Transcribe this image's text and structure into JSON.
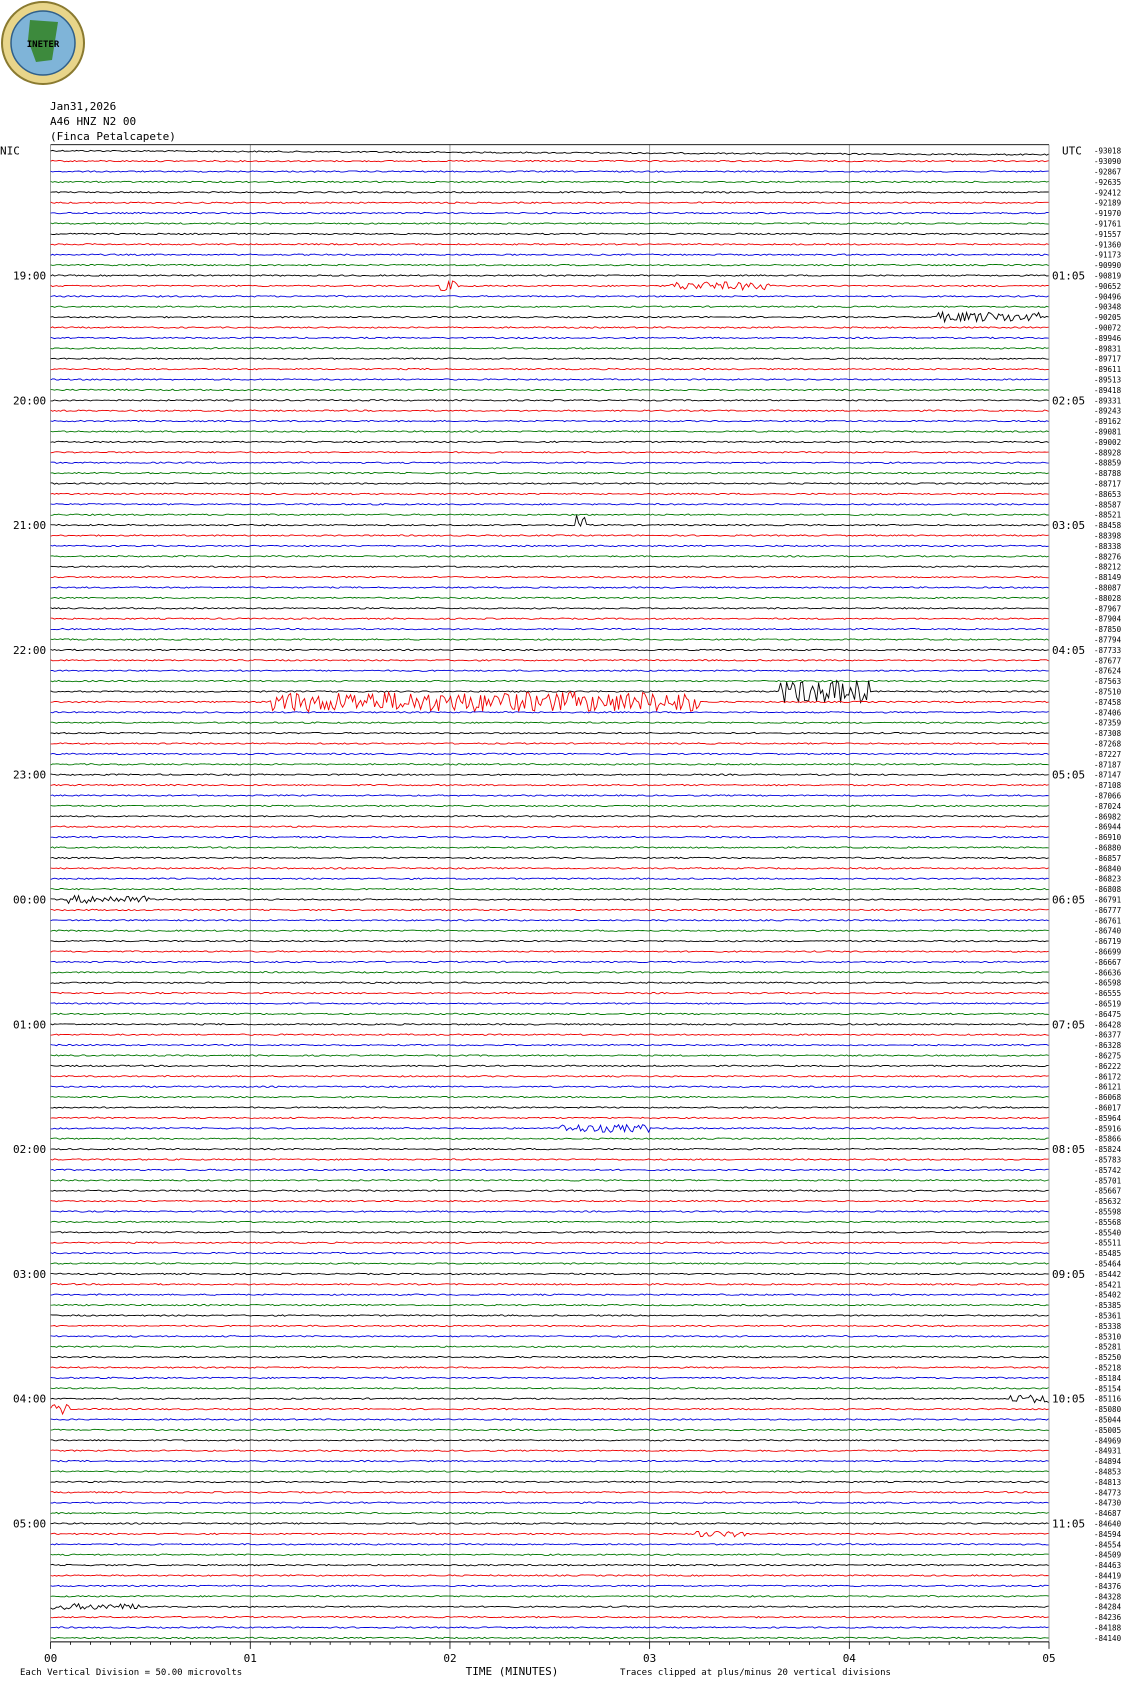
{
  "header": {
    "logo_text": "INETER",
    "date": "Jan31,2026",
    "station": "A46 HNZ N2 00",
    "location": "(Finca Petalcapete)"
  },
  "left_zone": "NIC",
  "right_zone": "UTC",
  "left_times": [
    "19:00",
    "20:00",
    "21:00",
    "22:00",
    "23:00",
    "00:00",
    "01:00",
    "02:00",
    "03:00",
    "04:00",
    "05:00"
  ],
  "right_times": [
    "01:05",
    "02:05",
    "03:05",
    "04:05",
    "05:05",
    "06:05",
    "07:05",
    "08:05",
    "09:05",
    "10:05",
    "11:05"
  ],
  "trace_offsets": [
    -93018,
    -93090,
    -92867,
    -92635,
    -92412,
    -92189,
    -91970,
    -91761,
    -91557,
    -91360,
    -91173,
    -90990,
    -90819,
    -90652,
    -90496,
    -90348,
    -90205,
    -90072,
    -89946,
    -89831,
    -89717,
    -89611,
    -89513,
    -89418,
    -89331,
    -89243,
    -89162,
    -89081,
    -89002,
    -88928,
    -88859,
    -88788,
    -88717,
    -88653,
    -88587,
    -88521,
    -88458,
    -88398,
    -88338,
    -88276,
    -88212,
    -88149,
    -88087,
    -88028,
    -87967,
    -87904,
    -87850,
    -87794,
    -87733,
    -87677,
    -87624,
    -87563,
    -87510,
    -87458,
    -87406,
    -87359,
    -87308,
    -87268,
    -87227,
    -87187,
    -87147,
    -87108,
    -87066,
    -87024,
    -86982,
    -86944,
    -86910,
    -86880,
    -86857,
    -86840,
    -86823,
    -86808,
    -86791,
    -86777,
    -86761,
    -86740,
    -86719,
    -86699,
    -86667,
    -86636,
    -86598,
    -86555,
    -86519,
    -86475,
    -86428,
    -86377,
    -86328,
    -86275,
    -86222,
    -86172,
    -86121,
    -86068,
    -86017,
    -85964,
    -85916,
    -85866,
    -85824,
    -85783,
    -85742,
    -85701,
    -85667,
    -85632,
    -85598,
    -85568,
    -85540,
    -85511,
    -85485,
    -85464,
    -85442,
    -85421,
    -85402,
    -85385,
    -85361,
    -85338,
    -85310,
    -85281,
    -85250,
    -85218,
    -85184,
    -85154,
    -85116,
    -85080,
    -85044,
    -85005,
    -84969,
    -84931,
    -84894,
    -84853,
    -84813,
    -84773,
    -84730,
    -84687,
    -84640,
    -84594,
    -84554,
    -84509,
    -84463,
    -84419,
    -84376,
    -84328,
    -84284,
    -84236,
    -84188,
    -84140
  ],
  "x_axis": {
    "label": "TIME (MINUTES)",
    "ticks": [
      "00",
      "01",
      "02",
      "03",
      "04",
      "05"
    ]
  },
  "footer": {
    "scale_note": "Each Vertical Division =   50.00 microvolts",
    "clip_note": "Traces clipped at plus/minus 20 vertical divisions"
  }
}
